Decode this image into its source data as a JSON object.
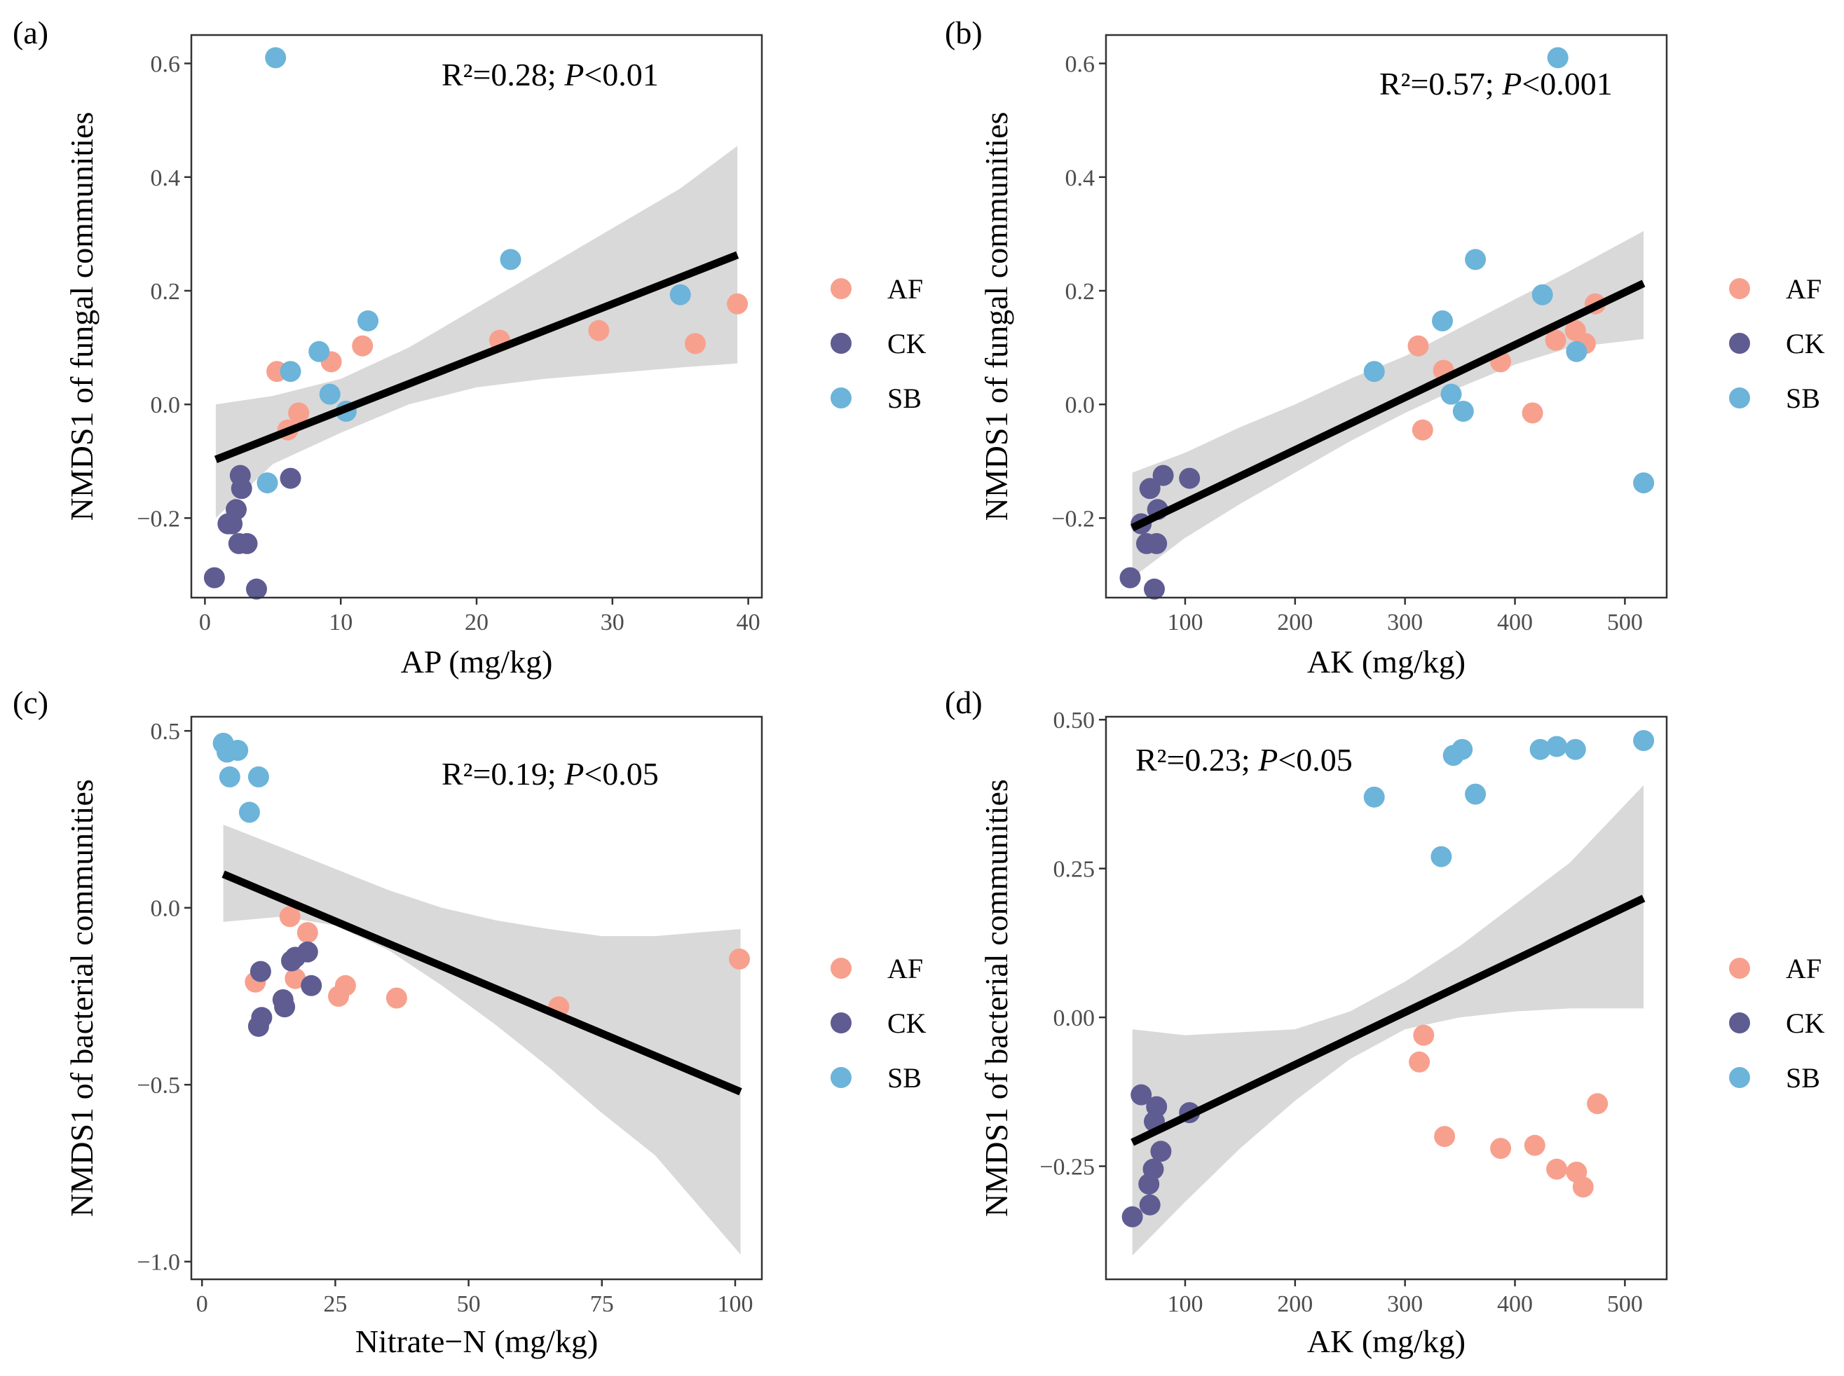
{
  "groups": [
    {
      "name": "AF",
      "color": "#F8A08E"
    },
    {
      "name": "CK",
      "color": "#5F5C92"
    },
    {
      "name": "SB",
      "color": "#6CB4D9"
    }
  ],
  "chart_data": [
    {
      "type": "scatter",
      "panel_label": "(a)",
      "stat_prefix": "R²=0.28; ",
      "stat_p": "P",
      "stat_suffix": "<0.01",
      "xlabel": "AP (mg/kg)",
      "ylabel": "NMDS1 of fungal communities",
      "xlim": [
        -1,
        41
      ],
      "ylim": [
        -0.34,
        0.65
      ],
      "xticks": [
        0,
        10,
        20,
        30,
        40
      ],
      "xtick_labels": [
        "0",
        "10",
        "20",
        "30",
        "40"
      ],
      "yticks": [
        -0.2,
        0.0,
        0.2,
        0.4,
        0.6
      ],
      "ytick_labels": [
        "−0.2",
        "0.0",
        "0.2",
        "0.4",
        "0.6"
      ],
      "fit": {
        "x": [
          0.8,
          39.2
        ],
        "y": [
          -0.097,
          0.263
        ]
      },
      "band": {
        "x": [
          0.8,
          5,
          10,
          15,
          20,
          25,
          30,
          35,
          39.2
        ],
        "lower": [
          -0.2,
          -0.105,
          -0.05,
          0.0,
          0.03,
          0.045,
          0.055,
          0.065,
          0.072
        ],
        "upper": [
          0.0,
          0.015,
          0.045,
          0.1,
          0.17,
          0.24,
          0.31,
          0.38,
          0.455
        ]
      },
      "series": [
        {
          "name": "AF",
          "points": [
            [
              5.3,
              0.058
            ],
            [
              9.3,
              0.075
            ],
            [
              11.6,
              0.103
            ],
            [
              21.7,
              0.113
            ],
            [
              29.0,
              0.13
            ],
            [
              36.1,
              0.107
            ],
            [
              39.2,
              0.177
            ],
            [
              6.1,
              -0.045
            ],
            [
              6.9,
              -0.015
            ]
          ]
        },
        {
          "name": "CK",
          "points": [
            [
              0.7,
              -0.305
            ],
            [
              1.7,
              -0.21
            ],
            [
              2.0,
              -0.21
            ],
            [
              2.3,
              -0.185
            ],
            [
              2.5,
              -0.245
            ],
            [
              2.6,
              -0.125
            ],
            [
              2.7,
              -0.148
            ],
            [
              3.1,
              -0.245
            ],
            [
              3.8,
              -0.325
            ],
            [
              6.3,
              -0.13
            ]
          ]
        },
        {
          "name": "SB",
          "points": [
            [
              5.2,
              0.61
            ],
            [
              6.3,
              0.058
            ],
            [
              8.4,
              0.093
            ],
            [
              9.2,
              0.018
            ],
            [
              10.4,
              -0.012
            ],
            [
              12.0,
              0.147
            ],
            [
              22.5,
              0.255
            ],
            [
              35.0,
              0.193
            ],
            [
              4.6,
              -0.138
            ]
          ]
        }
      ]
    },
    {
      "type": "scatter",
      "panel_label": "(b)",
      "stat_prefix": "R²=0.57; ",
      "stat_p": "P",
      "stat_suffix": "<0.001",
      "xlabel": "AK (mg/kg)",
      "ylabel": "NMDS1 of fungal communities",
      "xlim": [
        28,
        538
      ],
      "ylim": [
        -0.34,
        0.65
      ],
      "xticks": [
        100,
        200,
        300,
        400,
        500
      ],
      "xtick_labels": [
        "100",
        "200",
        "300",
        "400",
        "500"
      ],
      "yticks": [
        -0.2,
        0.0,
        0.2,
        0.4,
        0.6
      ],
      "ytick_labels": [
        "−0.2",
        "0.0",
        "0.2",
        "0.4",
        "0.6"
      ],
      "fit": {
        "x": [
          52,
          517
        ],
        "y": [
          -0.217,
          0.213
        ]
      },
      "band": {
        "x": [
          52,
          100,
          150,
          200,
          250,
          300,
          350,
          400,
          450,
          517
        ],
        "lower": [
          -0.305,
          -0.235,
          -0.175,
          -0.12,
          -0.065,
          -0.015,
          0.03,
          0.07,
          0.1,
          0.115
        ],
        "upper": [
          -0.12,
          -0.085,
          -0.04,
          0.0,
          0.045,
          0.085,
          0.135,
          0.185,
          0.235,
          0.305
        ]
      },
      "series": [
        {
          "name": "AF",
          "points": [
            [
              312,
              0.103
            ],
            [
              316,
              -0.045
            ],
            [
              335,
              0.06
            ],
            [
              387,
              0.075
            ],
            [
              416,
              -0.015
            ],
            [
              437,
              0.113
            ],
            [
              455,
              0.13
            ],
            [
              464,
              0.107
            ],
            [
              473,
              0.177
            ]
          ]
        },
        {
          "name": "CK",
          "points": [
            [
              50,
              -0.305
            ],
            [
              60,
              -0.21
            ],
            [
              65,
              -0.245
            ],
            [
              68,
              -0.148
            ],
            [
              72,
              -0.325
            ],
            [
              74,
              -0.245
            ],
            [
              75,
              -0.185
            ],
            [
              80,
              -0.125
            ],
            [
              104,
              -0.13
            ]
          ]
        },
        {
          "name": "SB",
          "points": [
            [
              272,
              0.058
            ],
            [
              334,
              0.147
            ],
            [
              342,
              0.018
            ],
            [
              353,
              -0.012
            ],
            [
              364,
              0.255
            ],
            [
              425,
              0.193
            ],
            [
              439,
              0.61
            ],
            [
              456,
              0.093
            ],
            [
              517,
              -0.138
            ]
          ]
        }
      ]
    },
    {
      "type": "scatter",
      "panel_label": "(c)",
      "stat_prefix": "R²=0.19; ",
      "stat_p": "P",
      "stat_suffix": "<0.05",
      "xlabel": "Nitrate−N (mg/kg)",
      "ylabel": "NMDS1 of bacterial communities",
      "xlim": [
        -2,
        105
      ],
      "ylim": [
        -1.05,
        0.54
      ],
      "xticks": [
        0,
        25,
        50,
        75,
        100
      ],
      "xtick_labels": [
        "0",
        "25",
        "50",
        "75",
        "100"
      ],
      "yticks": [
        -1.0,
        -0.5,
        0.0,
        0.5
      ],
      "ytick_labels": [
        "−1.0",
        "−0.5",
        "0.0",
        "0.5"
      ],
      "fit": {
        "x": [
          4,
          101
        ],
        "y": [
          0.095,
          -0.52
        ]
      },
      "band": {
        "x": [
          4,
          15,
          25,
          35,
          45,
          55,
          65,
          75,
          85,
          101
        ],
        "lower": [
          -0.04,
          -0.025,
          -0.05,
          -0.12,
          -0.22,
          -0.33,
          -0.45,
          -0.58,
          -0.7,
          -0.98
        ],
        "upper": [
          0.235,
          0.17,
          0.11,
          0.05,
          0.0,
          -0.035,
          -0.06,
          -0.08,
          -0.08,
          -0.06
        ]
      },
      "series": [
        {
          "name": "AF",
          "points": [
            [
              10.0,
              -0.21
            ],
            [
              16.5,
              -0.025
            ],
            [
              17.5,
              -0.2
            ],
            [
              19.8,
              -0.07
            ],
            [
              25.6,
              -0.25
            ],
            [
              26.9,
              -0.22
            ],
            [
              36.5,
              -0.255
            ],
            [
              66.9,
              -0.28
            ],
            [
              100.8,
              -0.145
            ]
          ]
        },
        {
          "name": "CK",
          "points": [
            [
              10.6,
              -0.335
            ],
            [
              11.0,
              -0.18
            ],
            [
              11.2,
              -0.31
            ],
            [
              15.2,
              -0.26
            ],
            [
              15.5,
              -0.28
            ],
            [
              16.8,
              -0.15
            ],
            [
              17.5,
              -0.14
            ],
            [
              19.8,
              -0.125
            ],
            [
              20.5,
              -0.22
            ]
          ]
        },
        {
          "name": "SB",
          "points": [
            [
              4.0,
              0.465
            ],
            [
              4.7,
              0.44
            ],
            [
              5.2,
              0.37
            ],
            [
              6.7,
              0.445
            ],
            [
              8.9,
              0.27
            ],
            [
              10.6,
              0.37
            ]
          ]
        }
      ]
    },
    {
      "type": "scatter",
      "panel_label": "(d)",
      "stat_prefix": "R²=0.23; ",
      "stat_p": "P",
      "stat_suffix": "<0.05",
      "xlabel": "AK (mg/kg)",
      "ylabel": "NMDS1 of bacterial communities",
      "xlim": [
        28,
        538
      ],
      "ylim": [
        -0.44,
        0.505
      ],
      "xticks": [
        100,
        200,
        300,
        400,
        500
      ],
      "xtick_labels": [
        "100",
        "200",
        "300",
        "400",
        "500"
      ],
      "yticks": [
        -0.25,
        0.0,
        0.25,
        0.5
      ],
      "ytick_labels": [
        "−0.25",
        "0.00",
        "0.25",
        "0.50"
      ],
      "fit": {
        "x": [
          52,
          517
        ],
        "y": [
          -0.21,
          0.2
        ]
      },
      "band": {
        "x": [
          52,
          100,
          150,
          200,
          250,
          300,
          350,
          400,
          450,
          517
        ],
        "lower": [
          -0.4,
          -0.31,
          -0.22,
          -0.14,
          -0.07,
          -0.02,
          0.0,
          0.01,
          0.015,
          0.015
        ],
        "upper": [
          -0.02,
          -0.03,
          -0.025,
          -0.02,
          0.01,
          0.06,
          0.12,
          0.19,
          0.26,
          0.39
        ]
      },
      "series": [
        {
          "name": "AF",
          "points": [
            [
              313,
              -0.075
            ],
            [
              317,
              -0.03
            ],
            [
              336,
              -0.2
            ],
            [
              387,
              -0.22
            ],
            [
              418,
              -0.215
            ],
            [
              438,
              -0.255
            ],
            [
              456,
              -0.26
            ],
            [
              462,
              -0.285
            ],
            [
              475,
              -0.145
            ]
          ]
        },
        {
          "name": "CK",
          "points": [
            [
              52,
              -0.335
            ],
            [
              60,
              -0.13
            ],
            [
              67,
              -0.28
            ],
            [
              68,
              -0.315
            ],
            [
              71,
              -0.255
            ],
            [
              72,
              -0.175
            ],
            [
              74,
              -0.15
            ],
            [
              78,
              -0.225
            ],
            [
              104,
              -0.16
            ]
          ]
        },
        {
          "name": "SB",
          "points": [
            [
              272,
              0.37
            ],
            [
              333,
              0.27
            ],
            [
              344,
              0.44
            ],
            [
              352,
              0.45
            ],
            [
              364,
              0.375
            ],
            [
              423,
              0.45
            ],
            [
              438,
              0.455
            ],
            [
              455,
              0.45
            ],
            [
              517,
              0.465
            ]
          ]
        }
      ]
    }
  ]
}
